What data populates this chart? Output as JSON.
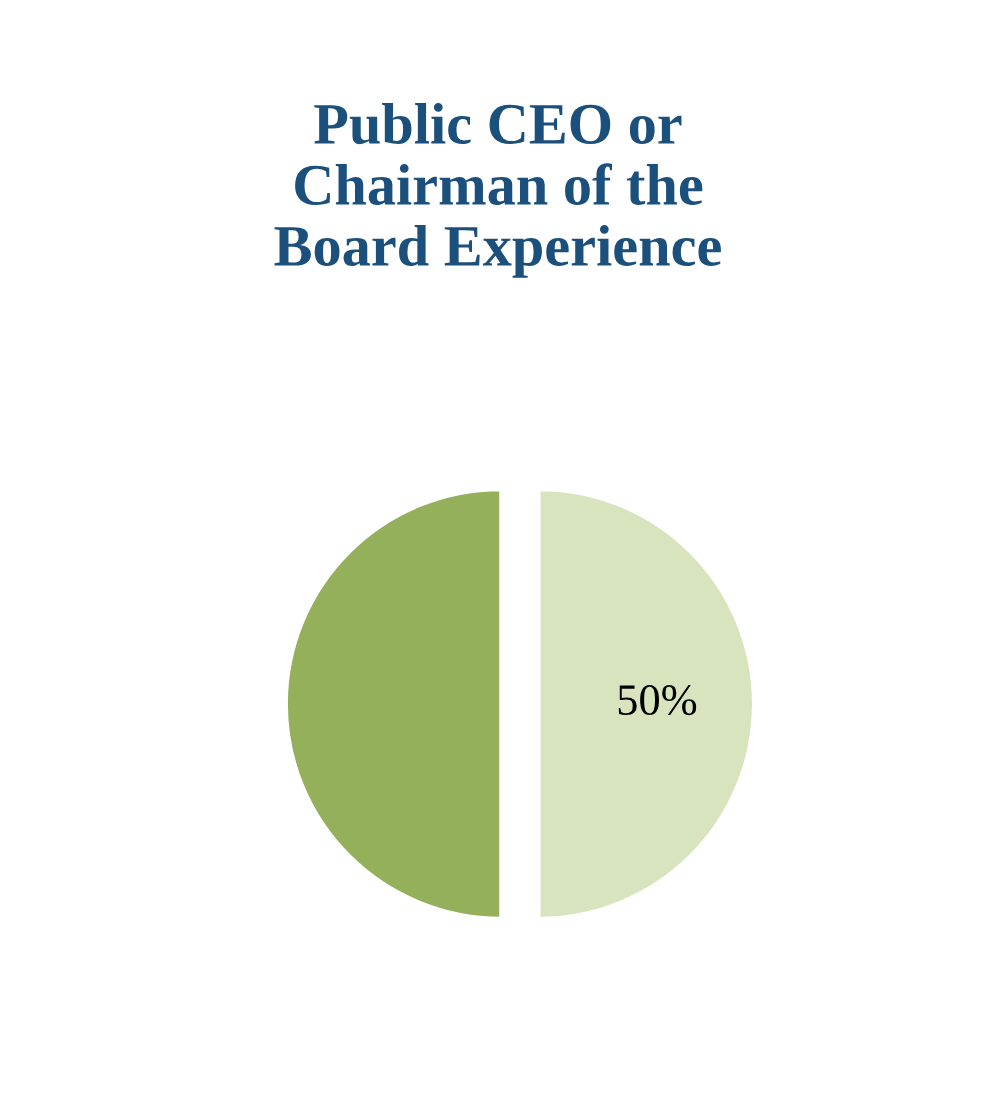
{
  "chart_data": {
    "type": "pie",
    "title": "Public CEO or\nChairman of the\nBoard Experience",
    "categories": [
      null,
      null
    ],
    "values": [
      50,
      50
    ],
    "colors": [
      "#d7e4bd",
      "#95b05a"
    ],
    "value_labels": [
      "50%",
      null
    ]
  }
}
